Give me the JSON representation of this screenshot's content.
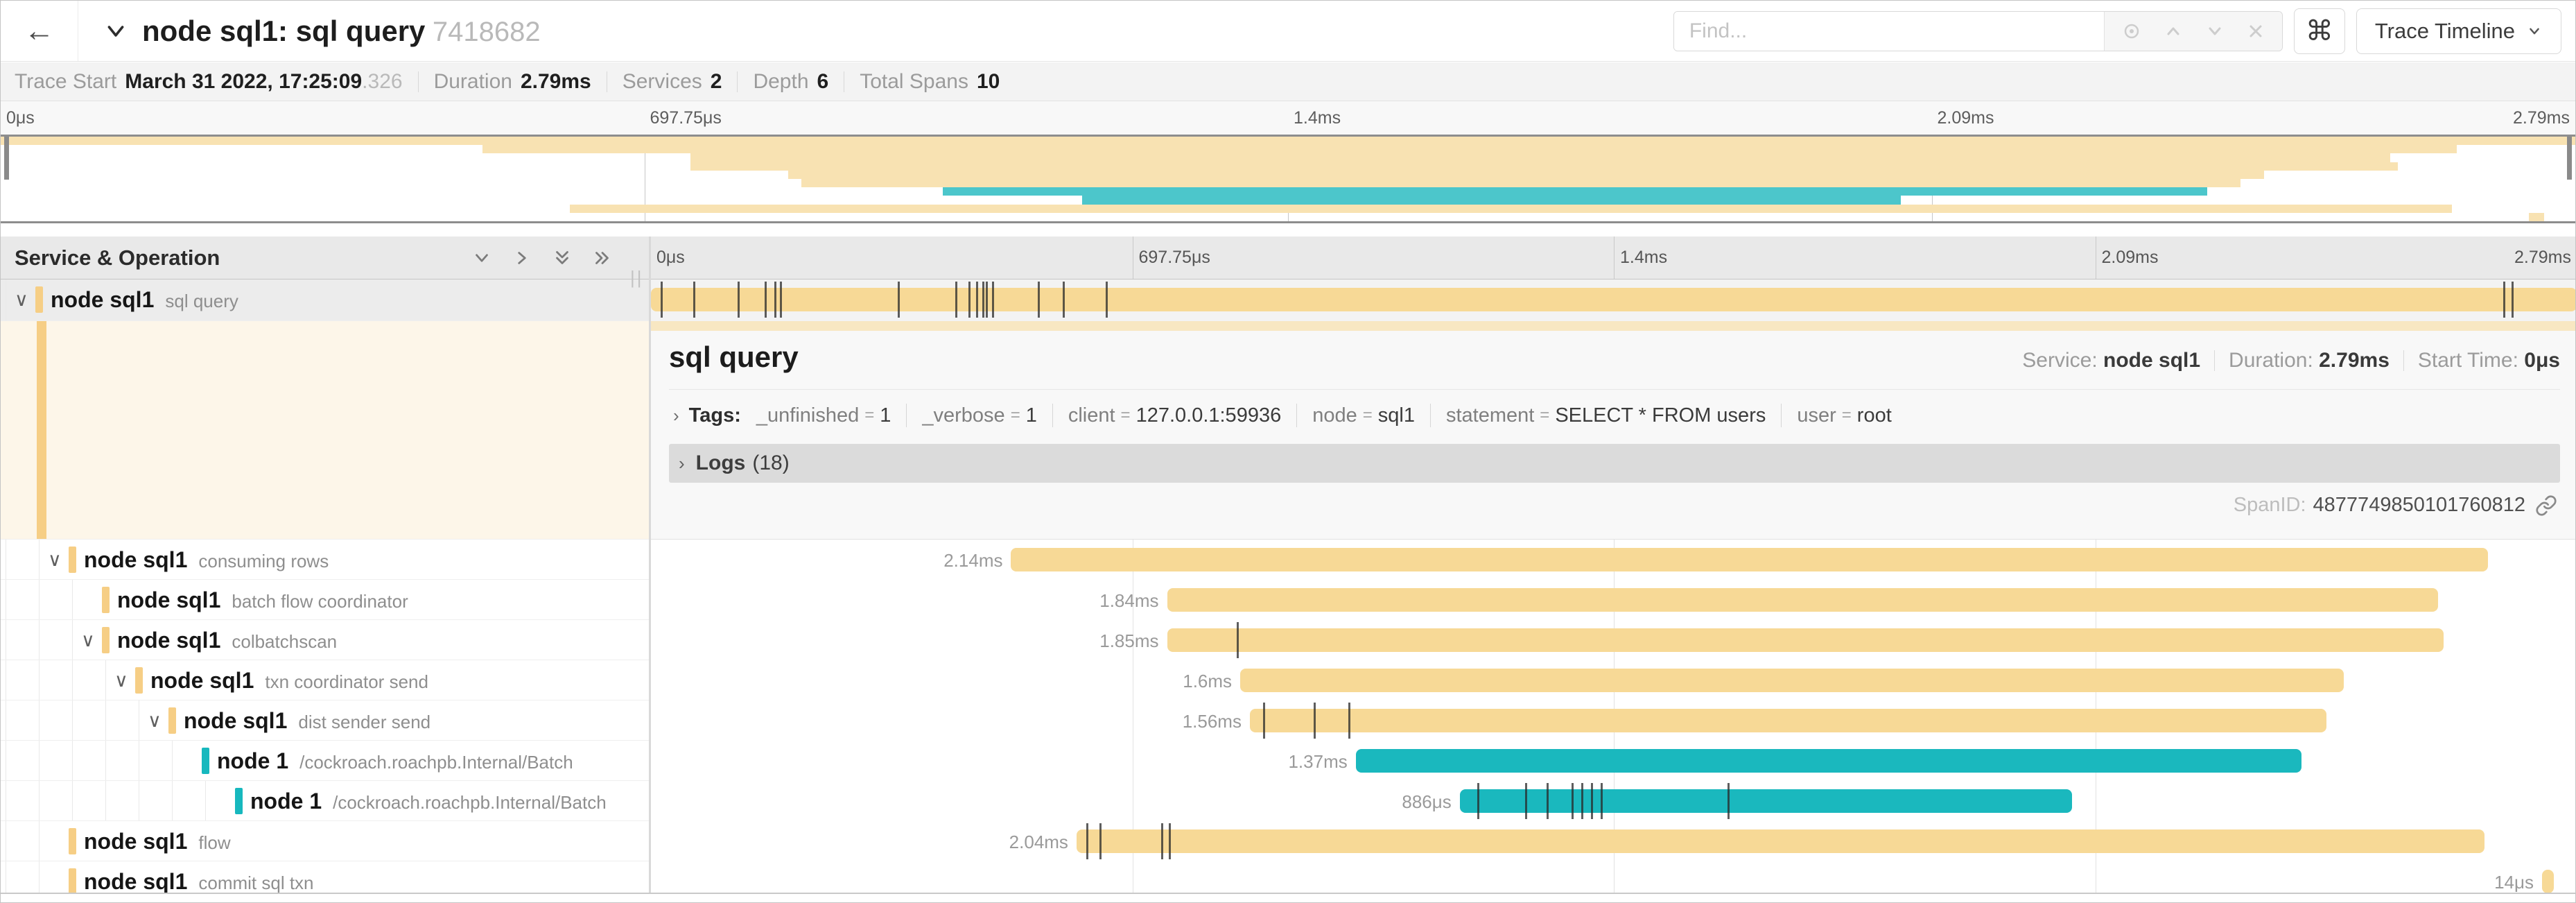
{
  "colors": {
    "bar_yellow": "#f7d996",
    "bar_teal": "#1ab8be",
    "mini_yellow": "#f8e2b2",
    "mini_teal": "#4cc6cb",
    "indicator_yellow": "#f6ce85",
    "indicator_teal": "#17b8be",
    "accent": "#f7d996"
  },
  "header": {
    "back_icon": "←",
    "title": "node sql1: sql query",
    "trace_id": "7418682",
    "find_placeholder": "Find...",
    "shortcut_glyph": "⌘",
    "view_button_label": "Trace Timeline"
  },
  "summary": {
    "items": [
      {
        "label": "Trace Start",
        "value": "March 31 2022, 17:25:09",
        "suffix": ".326"
      },
      {
        "label": "Duration",
        "value": "2.79ms",
        "suffix": ""
      },
      {
        "label": "Services",
        "value": "2",
        "suffix": ""
      },
      {
        "label": "Depth",
        "value": "6",
        "suffix": ""
      },
      {
        "label": "Total Spans",
        "value": "10",
        "suffix": ""
      }
    ]
  },
  "timeline": {
    "left_title": "Service & Operation",
    "drag_handle": "||",
    "ticks": [
      "0μs",
      "697.75μs",
      "1.4ms",
      "2.09ms",
      "2.79ms"
    ]
  },
  "spans": [
    {
      "service": "node sql1",
      "operation": "sql query",
      "depth": 0,
      "chevron": true,
      "color": "yellow",
      "start": 0,
      "width": 100,
      "duration": "",
      "selected": true,
      "ticks": [
        0.5,
        2.2,
        4.5,
        5.9,
        6.4,
        6.7,
        12.8,
        15.8,
        16.5,
        16.9,
        17.2,
        17.4,
        17.7,
        20.1,
        21.4,
        23.6,
        96.2,
        96.6
      ]
    },
    {
      "service": "node sql1",
      "operation": "consuming rows",
      "depth": 1,
      "chevron": true,
      "color": "yellow",
      "start": 18.7,
      "width": 76.7,
      "duration": "2.14ms",
      "ticks": []
    },
    {
      "service": "node sql1",
      "operation": "batch flow coordinator",
      "depth": 2,
      "chevron": false,
      "color": "yellow",
      "start": 26.8,
      "width": 66.0,
      "duration": "1.84ms",
      "ticks": []
    },
    {
      "service": "node sql1",
      "operation": "colbatchscan",
      "depth": 2,
      "chevron": true,
      "color": "yellow",
      "start": 26.8,
      "width": 66.3,
      "duration": "1.85ms",
      "ticks": [
        30.4
      ]
    },
    {
      "service": "node sql1",
      "operation": "txn coordinator send",
      "depth": 3,
      "chevron": true,
      "color": "yellow",
      "start": 30.6,
      "width": 57.3,
      "duration": "1.6ms",
      "ticks": []
    },
    {
      "service": "node sql1",
      "operation": "dist sender send",
      "depth": 4,
      "chevron": true,
      "color": "yellow",
      "start": 31.1,
      "width": 55.9,
      "duration": "1.56ms",
      "ticks": [
        31.8,
        34.4,
        36.2
      ]
    },
    {
      "service": "node 1",
      "operation": "/cockroach.roachpb.Internal/Batch",
      "depth": 5,
      "chevron": false,
      "color": "teal",
      "start": 36.6,
      "width": 49.1,
      "duration": "1.37ms",
      "ticks": []
    },
    {
      "service": "node 1",
      "operation": "/cockroach.roachpb.Internal/Batch",
      "depth": 6,
      "chevron": false,
      "color": "teal",
      "start": 42.0,
      "width": 31.8,
      "duration": "886μs",
      "ticks": [
        42.9,
        45.4,
        46.5,
        47.8,
        48.3,
        48.8,
        49.3,
        55.9
      ]
    },
    {
      "service": "node sql1",
      "operation": "flow",
      "depth": 1,
      "chevron": false,
      "color": "yellow",
      "start": 22.1,
      "width": 73.1,
      "duration": "2.04ms",
      "ticks": [
        22.6,
        23.3,
        26.5,
        26.9
      ]
    },
    {
      "service": "node sql1",
      "operation": "commit sql txn",
      "depth": 1,
      "chevron": false,
      "color": "yellow",
      "start": 98.2,
      "width": 0.6,
      "duration": "14μs",
      "ticks": []
    }
  ],
  "detail": {
    "title": "sql query",
    "service_label": "Service:",
    "service_value": "node sql1",
    "duration_label": "Duration:",
    "duration_value": "2.79ms",
    "start_label": "Start Time:",
    "start_value": "0μs",
    "tags_label": "Tags:",
    "tags_eq": "=",
    "tags": [
      {
        "key": "_unfinished",
        "value": "1"
      },
      {
        "key": "_verbose",
        "value": "1"
      },
      {
        "key": "client",
        "value": "127.0.0.1:59936"
      },
      {
        "key": "node",
        "value": "sql1"
      },
      {
        "key": "statement",
        "value": "SELECT * FROM users"
      },
      {
        "key": "user",
        "value": "root"
      }
    ],
    "logs_label": "Logs",
    "logs_count": "(18)",
    "spanid_label": "SpanID:",
    "spanid_value": "4877749850101760812"
  }
}
